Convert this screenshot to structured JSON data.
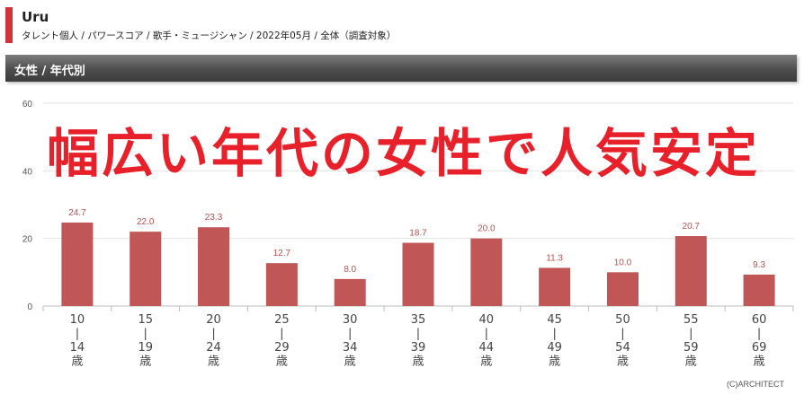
{
  "header": {
    "title": "Uru",
    "breadcrumb": "タレント個人 / パワースコア / 歌手・ミュージシャン / 2022年05月 / 全体（調査対象）"
  },
  "section": {
    "title": "女性 / 年代別"
  },
  "headline": "幅広い年代の女性で人気安定",
  "copyright": "(C)ARCHITECT",
  "colors": {
    "accent": "#d0343a",
    "bar": "#c05656",
    "headline": "#e8202a"
  },
  "chart_data": {
    "type": "bar",
    "categories": [
      [
        "10",
        "|",
        "14",
        "歳"
      ],
      [
        "15",
        "|",
        "19",
        "歳"
      ],
      [
        "20",
        "|",
        "24",
        "歳"
      ],
      [
        "25",
        "|",
        "29",
        "歳"
      ],
      [
        "30",
        "|",
        "34",
        "歳"
      ],
      [
        "35",
        "|",
        "39",
        "歳"
      ],
      [
        "40",
        "|",
        "44",
        "歳"
      ],
      [
        "45",
        "|",
        "49",
        "歳"
      ],
      [
        "50",
        "|",
        "54",
        "歳"
      ],
      [
        "55",
        "|",
        "59",
        "歳"
      ],
      [
        "60",
        "|",
        "69",
        "歳"
      ]
    ],
    "values": [
      24.7,
      22.0,
      23.3,
      12.7,
      8.0,
      18.7,
      20.0,
      11.3,
      10.0,
      20.7,
      9.3
    ],
    "value_labels": [
      "24.7",
      "22.0",
      "23.3",
      "12.7",
      "8.0",
      "18.7",
      "20.0",
      "11.3",
      "10.0",
      "20.7",
      "9.3"
    ],
    "ylim": [
      0,
      60
    ],
    "yticks": [
      0,
      20,
      40,
      60
    ],
    "ytick_labels": [
      "0",
      "20",
      "40",
      "60"
    ],
    "grid": true,
    "legend": "none"
  }
}
